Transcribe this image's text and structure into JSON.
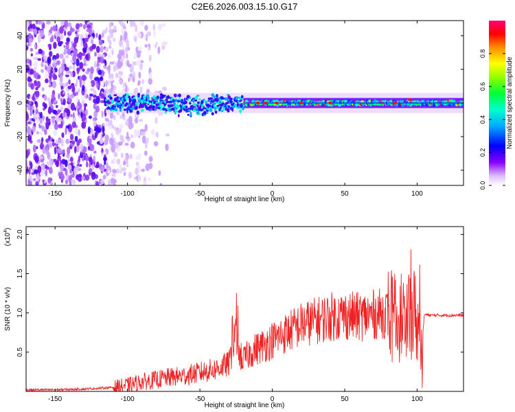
{
  "title": "C2E6.2026.003.15.10.G17",
  "chart_data": [
    {
      "type": "heatmap",
      "xlabel": "Height of straight line (km)",
      "ylabel": "Frequency (Hz)",
      "xlim": [
        -170,
        132
      ],
      "ylim": [
        -49,
        49
      ],
      "xticks": [
        -150,
        -100,
        -50,
        0,
        50,
        100
      ],
      "yticks": [
        -40,
        -20,
        0,
        20,
        40
      ],
      "colorbar": {
        "label": "Normalized spectral amplitude",
        "range": [
          0,
          1
        ],
        "ticks": [
          "0.0",
          "0.2",
          "0.4",
          "0.6",
          "0.8"
        ],
        "colors": [
          "#ffffff",
          "#cc88ff",
          "#8800ff",
          "#0000ff",
          "#00ccff",
          "#00ff66",
          "#aaff00",
          "#ffff00",
          "#ff8800",
          "#ff0000",
          "#ff0088"
        ]
      },
      "description_of_pattern": {
        "noise_region_km": [
          -170,
          -110
        ],
        "signal_band_center_hz": 0,
        "signal_start_km": -115
      }
    },
    {
      "type": "line",
      "xlabel": "Height of straight line (km)",
      "ylabel": "SNR (10 * v/v)",
      "y_multiplier": "(x10^4)",
      "xlim": [
        -170,
        132
      ],
      "ylim": [
        0,
        2.1
      ],
      "xticks": [
        -150,
        -100,
        -50,
        0,
        50,
        100
      ],
      "yticks": [
        "0.5",
        "1.0",
        "1.5",
        "2.0"
      ],
      "series": [
        {
          "color": "#ee2222",
          "x": [
            -170,
            -150,
            -130,
            -110,
            -100,
            -90,
            -80,
            -70,
            -60,
            -50,
            -40,
            -30,
            -25,
            -22,
            -20,
            -15,
            -10,
            -5,
            0,
            10,
            20,
            30,
            40,
            50,
            60,
            70,
            80,
            85,
            90,
            95,
            98,
            100,
            103,
            105,
            110,
            120,
            132
          ],
          "y": [
            0.02,
            0.02,
            0.03,
            0.05,
            0.08,
            0.12,
            0.15,
            0.18,
            0.2,
            0.24,
            0.28,
            0.35,
            0.7,
            0.45,
            0.4,
            0.5,
            0.55,
            0.6,
            0.65,
            0.75,
            0.85,
            0.9,
            0.95,
            0.97,
            0.95,
            0.98,
            1.0,
            0.9,
            1.0,
            1.0,
            1.0,
            0.9,
            0.5,
            0.98,
            0.97,
            0.97,
            0.97
          ]
        }
      ]
    }
  ]
}
